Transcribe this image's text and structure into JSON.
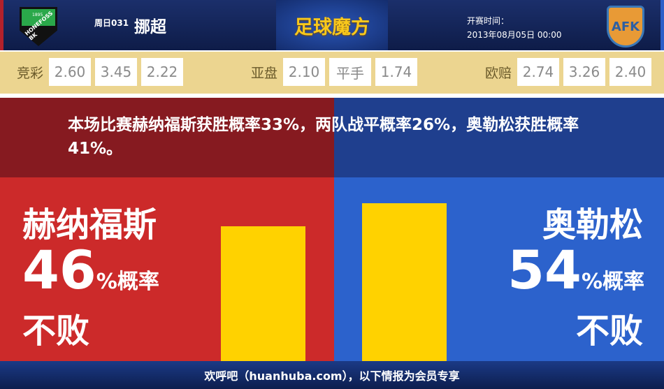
{
  "header": {
    "home_badge_text": "HONEFOSS BK",
    "home_badge_year": "1895",
    "round": "周日031",
    "league": "挪超",
    "logo": "足球魔方",
    "kickoff_label": "开赛时间：",
    "kickoff_time": "2013年08月05日 00:00",
    "away_badge_text": "AFK"
  },
  "odds": [
    {
      "label": "竞彩",
      "values": [
        "2.60",
        "3.45",
        "2.22"
      ]
    },
    {
      "label": "亚盘",
      "values": [
        "2.10",
        "平手",
        "1.74"
      ]
    },
    {
      "label": "欧赔",
      "values": [
        "2.74",
        "3.26",
        "2.40"
      ]
    }
  ],
  "summary": "本场比赛赫纳福斯获胜概率33%，两队战平概率26%，奥勒松获胜概率41%。",
  "chart_data": {
    "type": "bar",
    "categories": [
      "赫纳福斯",
      "奥勒松"
    ],
    "values": [
      46,
      54
    ],
    "colors": {
      "home_bg": "#cc2a2a",
      "away_bg": "#2c62cc",
      "bar": "#ffd200"
    }
  },
  "home": {
    "name": "赫纳福斯",
    "pct": "46",
    "unit": "%概率",
    "result": "不败"
  },
  "away": {
    "name": "奥勒松",
    "pct": "54",
    "unit": "%概率",
    "result": "不败"
  },
  "footer": "欢呼吧（huanhuba.com），以下情报为会员专享"
}
